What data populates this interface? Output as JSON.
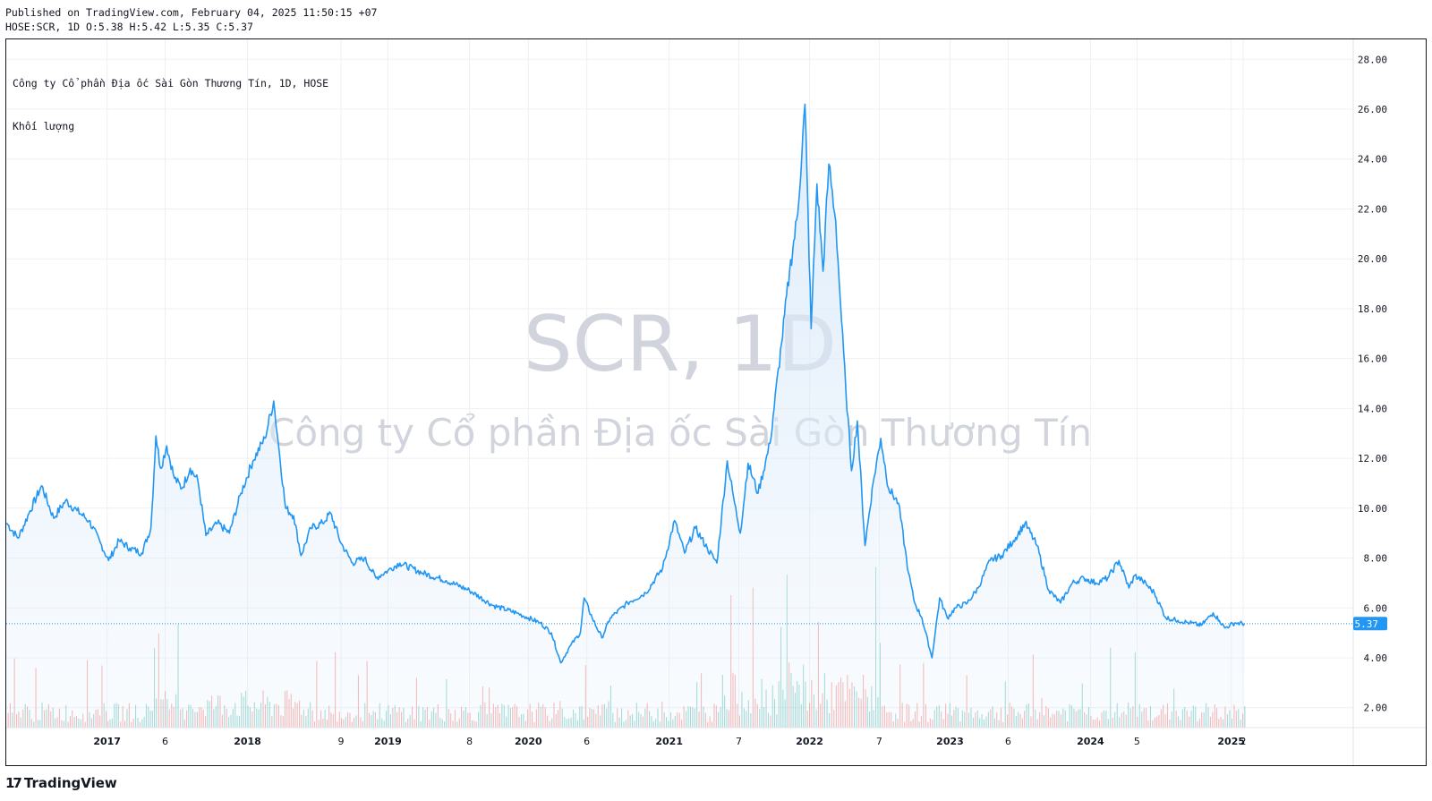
{
  "header": {
    "published": "Published on TradingView.com, February 04, 2025 11:50:15 +07",
    "ohlc": "HOSE:SCR, 1D O:5.38 H:5.42 L:5.35 C:5.37"
  },
  "legend": {
    "series_title": "Công ty Cổ phần Địa ốc Sài Gòn Thương Tín, 1D, HOSE",
    "volume_title": "Khối lượng"
  },
  "watermark": {
    "symbol": "SCR, 1D",
    "company": "Công ty Cổ phần Địa ốc Sài Gòn Thương Tín"
  },
  "last_price_label": "5.37",
  "footer": {
    "logo_icon": "tradingview-logo-icon",
    "brand": "TradingView"
  },
  "colors": {
    "line": "#2196f3",
    "area": "#dcebfa",
    "vol_up": "#26a69a",
    "vol_down": "#ef5350",
    "grid": "#eef0f3",
    "watermark": "#d1d4dc"
  },
  "chart_data": {
    "type": "area",
    "title": "Công ty Cổ phần Địa ốc Sài Gòn Thương Tín, 1D, HOSE",
    "ylim": [
      1.2,
      28.8
    ],
    "grid": true,
    "y_ticks": [
      "2.00",
      "4.00",
      "6.00",
      "8.00",
      "10.00",
      "12.00",
      "14.00",
      "16.00",
      "18.00",
      "20.00",
      "22.00",
      "24.00",
      "26.00",
      "28.00"
    ],
    "x_ticks": [
      "2017",
      "6",
      "2018",
      "9",
      "2019",
      "8",
      "2020",
      "6",
      "2021",
      "7",
      "2022",
      "7",
      "2023",
      "6",
      "2024",
      "5",
      "2025",
      "2"
    ],
    "x_tick_dates": [
      "2017-01-01",
      "2017-06-01",
      "2018-01-01",
      "2018-09-01",
      "2019-01-01",
      "2019-08-01",
      "2020-01-01",
      "2020-06-01",
      "2021-01-01",
      "2021-07-01",
      "2022-01-01",
      "2022-07-01",
      "2023-01-01",
      "2023-06-01",
      "2024-01-01",
      "2024-05-01",
      "2025-01-01",
      "2025-02-01"
    ],
    "x_range": [
      "2016-04-14",
      "2025-11-14"
    ],
    "series": [
      {
        "name": "SCR",
        "points": [
          [
            "2016-04-15",
            9.4
          ],
          [
            "2016-05-15",
            8.8
          ],
          [
            "2016-06-15",
            9.9
          ],
          [
            "2016-07-15",
            10.9
          ],
          [
            "2016-08-15",
            9.6
          ],
          [
            "2016-09-15",
            10.3
          ],
          [
            "2016-10-15",
            9.9
          ],
          [
            "2016-11-15",
            9.5
          ],
          [
            "2016-12-15",
            8.6
          ],
          [
            "2017-01-05",
            7.9
          ],
          [
            "2017-02-01",
            8.7
          ],
          [
            "2017-03-01",
            8.4
          ],
          [
            "2017-04-01",
            8.2
          ],
          [
            "2017-04-25",
            9.2
          ],
          [
            "2017-05-08",
            12.9
          ],
          [
            "2017-05-20",
            11.6
          ],
          [
            "2017-06-05",
            12.5
          ],
          [
            "2017-06-25",
            11.2
          ],
          [
            "2017-07-15",
            10.8
          ],
          [
            "2017-08-05",
            11.6
          ],
          [
            "2017-08-25",
            11.1
          ],
          [
            "2017-09-15",
            8.9
          ],
          [
            "2017-10-15",
            9.4
          ],
          [
            "2017-11-15",
            9.0
          ],
          [
            "2017-12-15",
            10.6
          ],
          [
            "2018-01-15",
            11.9
          ],
          [
            "2018-02-15",
            12.8
          ],
          [
            "2018-03-10",
            14.3
          ],
          [
            "2018-03-25",
            12.2
          ],
          [
            "2018-04-10",
            10.0
          ],
          [
            "2018-05-01",
            9.7
          ],
          [
            "2018-05-20",
            8.1
          ],
          [
            "2018-06-15",
            9.2
          ],
          [
            "2018-07-15",
            9.4
          ],
          [
            "2018-08-05",
            9.8
          ],
          [
            "2018-09-01",
            8.6
          ],
          [
            "2018-10-01",
            7.8
          ],
          [
            "2018-11-01",
            8.0
          ],
          [
            "2018-12-01",
            7.2
          ],
          [
            "2019-01-01",
            7.5
          ],
          [
            "2019-02-01",
            7.8
          ],
          [
            "2019-04-01",
            7.4
          ],
          [
            "2019-06-01",
            7.1
          ],
          [
            "2019-08-01",
            6.7
          ],
          [
            "2019-10-01",
            6.1
          ],
          [
            "2019-12-01",
            5.8
          ],
          [
            "2020-01-01",
            5.6
          ],
          [
            "2020-02-01",
            5.4
          ],
          [
            "2020-03-01",
            5.0
          ],
          [
            "2020-03-25",
            3.8
          ],
          [
            "2020-04-20",
            4.5
          ],
          [
            "2020-05-15",
            5.0
          ],
          [
            "2020-05-25",
            6.4
          ],
          [
            "2020-06-15",
            5.6
          ],
          [
            "2020-07-10",
            4.8
          ],
          [
            "2020-08-01",
            5.6
          ],
          [
            "2020-09-15",
            6.2
          ],
          [
            "2020-11-01",
            6.6
          ],
          [
            "2020-12-15",
            7.6
          ],
          [
            "2021-01-15",
            9.5
          ],
          [
            "2021-02-10",
            8.2
          ],
          [
            "2021-03-10",
            9.2
          ],
          [
            "2021-04-10",
            8.4
          ],
          [
            "2021-05-05",
            7.8
          ],
          [
            "2021-06-01",
            11.9
          ],
          [
            "2021-06-20",
            10.2
          ],
          [
            "2021-07-05",
            9.0
          ],
          [
            "2021-07-25",
            11.8
          ],
          [
            "2021-08-20",
            10.6
          ],
          [
            "2021-09-20",
            12.6
          ],
          [
            "2021-10-20",
            16.6
          ],
          [
            "2021-11-10",
            19.5
          ],
          [
            "2021-12-01",
            21.8
          ],
          [
            "2021-12-20",
            26.2
          ],
          [
            "2022-01-05",
            17.2
          ],
          [
            "2022-01-20",
            23.0
          ],
          [
            "2022-02-05",
            19.5
          ],
          [
            "2022-02-20",
            23.8
          ],
          [
            "2022-03-10",
            21.5
          ],
          [
            "2022-03-25",
            17.5
          ],
          [
            "2022-04-05",
            14.8
          ],
          [
            "2022-04-20",
            11.5
          ],
          [
            "2022-05-05",
            13.5
          ],
          [
            "2022-05-25",
            8.5
          ],
          [
            "2022-06-15",
            11.0
          ],
          [
            "2022-07-05",
            12.8
          ],
          [
            "2022-07-25",
            10.8
          ],
          [
            "2022-08-20",
            10.2
          ],
          [
            "2022-09-15",
            7.4
          ],
          [
            "2022-10-01",
            6.2
          ],
          [
            "2022-10-20",
            5.6
          ],
          [
            "2022-11-15",
            4.0
          ],
          [
            "2022-12-05",
            6.4
          ],
          [
            "2022-12-25",
            5.6
          ],
          [
            "2023-01-15",
            6.0
          ],
          [
            "2023-02-15",
            6.2
          ],
          [
            "2023-03-15",
            6.8
          ],
          [
            "2023-04-15",
            7.9
          ],
          [
            "2023-05-15",
            8.1
          ],
          [
            "2023-06-15",
            8.7
          ],
          [
            "2023-07-15",
            9.4
          ],
          [
            "2023-08-15",
            8.5
          ],
          [
            "2023-09-15",
            6.7
          ],
          [
            "2023-10-15",
            6.2
          ],
          [
            "2023-11-15",
            7.0
          ],
          [
            "2023-12-15",
            7.2
          ],
          [
            "2024-01-15",
            7.0
          ],
          [
            "2024-02-15",
            7.2
          ],
          [
            "2024-03-15",
            7.9
          ],
          [
            "2024-04-10",
            6.8
          ],
          [
            "2024-04-25",
            7.3
          ],
          [
            "2024-05-15",
            7.1
          ],
          [
            "2024-06-15",
            6.6
          ],
          [
            "2024-07-15",
            5.6
          ],
          [
            "2024-08-15",
            5.5
          ],
          [
            "2024-09-15",
            5.4
          ],
          [
            "2024-10-15",
            5.3
          ],
          [
            "2024-11-15",
            5.8
          ],
          [
            "2024-12-01",
            5.5
          ],
          [
            "2024-12-15",
            5.2
          ],
          [
            "2025-01-10",
            5.4
          ],
          [
            "2025-02-04",
            5.37
          ]
        ]
      }
    ],
    "volume_note": "Khối lượng histogram (unlabelled scale)"
  }
}
